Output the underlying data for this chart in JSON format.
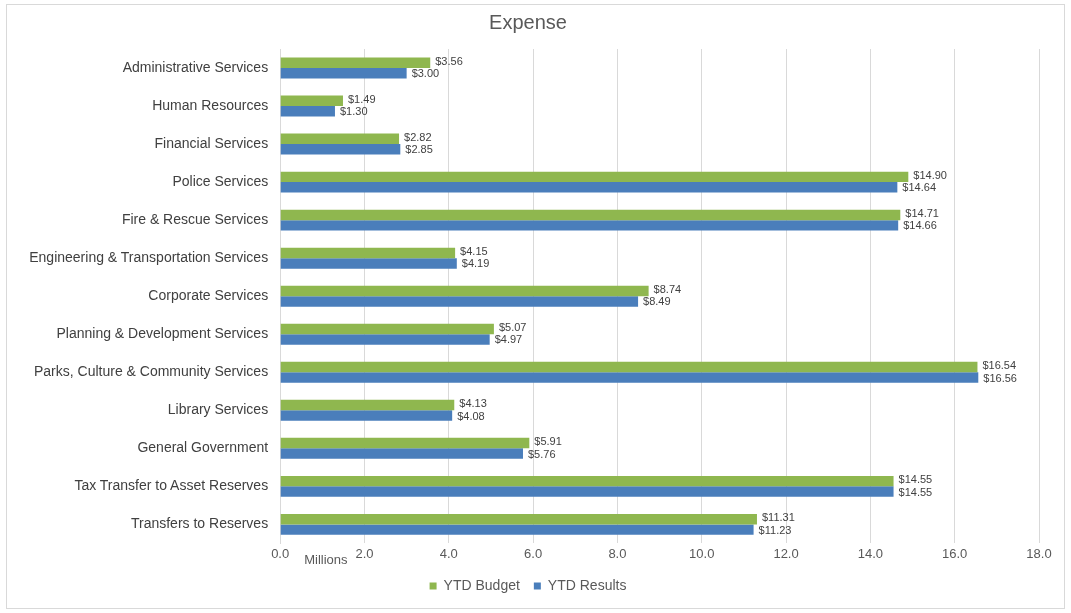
{
  "chart_data": {
    "type": "bar",
    "title": "Expense",
    "xlabel": "Millions",
    "orientation": "horizontal",
    "categories": [
      "Administrative Services",
      "Human Resources",
      "Financial Services",
      "Police Services",
      "Fire & Rescue Services",
      "Engineering & Transportation Services",
      "Corporate Services",
      "Planning & Development Services",
      "Parks, Culture & Community Services",
      "Library Services",
      "General Government",
      "Tax Transfer to Asset Reserves",
      "Transfers to Reserves"
    ],
    "series": [
      {
        "name": "YTD Budget",
        "color": "#8fb74f",
        "values": [
          3.56,
          1.49,
          2.82,
          14.9,
          14.71,
          4.15,
          8.74,
          5.07,
          16.54,
          4.13,
          5.91,
          14.55,
          11.31
        ],
        "value_labels": [
          "$3.56",
          "$1.49",
          "$2.82",
          "$14.90",
          "$14.71",
          "$4.15",
          "$8.74",
          "$5.07",
          "$16.54",
          "$4.13",
          "$5.91",
          "$14.55",
          "$11.31"
        ]
      },
      {
        "name": "YTD Results",
        "color": "#4a7ebb",
        "values": [
          3.0,
          1.3,
          2.85,
          14.64,
          14.66,
          4.19,
          8.49,
          4.97,
          16.56,
          4.08,
          5.76,
          14.55,
          11.23
        ],
        "value_labels": [
          "$3.00",
          "$1.30",
          "$2.85",
          "$14.64",
          "$14.66",
          "$4.19",
          "$8.49",
          "$4.97",
          "$16.56",
          "$4.08",
          "$5.76",
          "$14.55",
          "$11.23"
        ]
      }
    ],
    "xlim": [
      0,
      18
    ],
    "xticks": [
      {
        "value": 0,
        "label": "0.0"
      },
      {
        "value": 2,
        "label": "2.0"
      },
      {
        "value": 4,
        "label": "4.0"
      },
      {
        "value": 6,
        "label": "6.0"
      },
      {
        "value": 8,
        "label": "8.0"
      },
      {
        "value": 10,
        "label": "10.0"
      },
      {
        "value": 12,
        "label": "12.0"
      },
      {
        "value": 14,
        "label": "14.0"
      },
      {
        "value": 16,
        "label": "16.0"
      },
      {
        "value": 18,
        "label": "18.0"
      }
    ],
    "grid": true,
    "legend": "bottom"
  }
}
